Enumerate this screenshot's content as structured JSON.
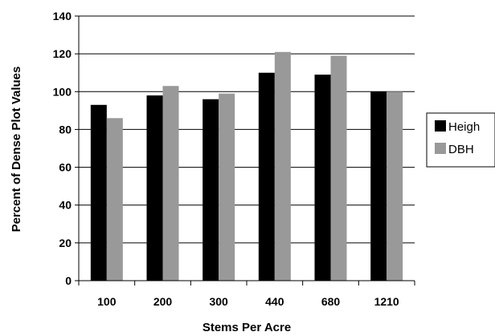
{
  "chart_data": {
    "type": "bar",
    "title": "",
    "xlabel": "Stems Per Acre",
    "ylabel": "Percent of Dense Plot Values",
    "categories": [
      "100",
      "200",
      "300",
      "440",
      "680",
      "1210"
    ],
    "ylim": [
      0,
      140
    ],
    "yticks": [
      0,
      20,
      40,
      60,
      80,
      100,
      120,
      140
    ],
    "grid": true,
    "legend_position": "right",
    "series": [
      {
        "name": "Heigh",
        "color": "#000000",
        "values": [
          93,
          98,
          96,
          110,
          109,
          100
        ]
      },
      {
        "name": "DBH",
        "color": "#999999",
        "values": [
          86,
          103,
          99,
          121,
          119,
          100
        ]
      }
    ]
  }
}
